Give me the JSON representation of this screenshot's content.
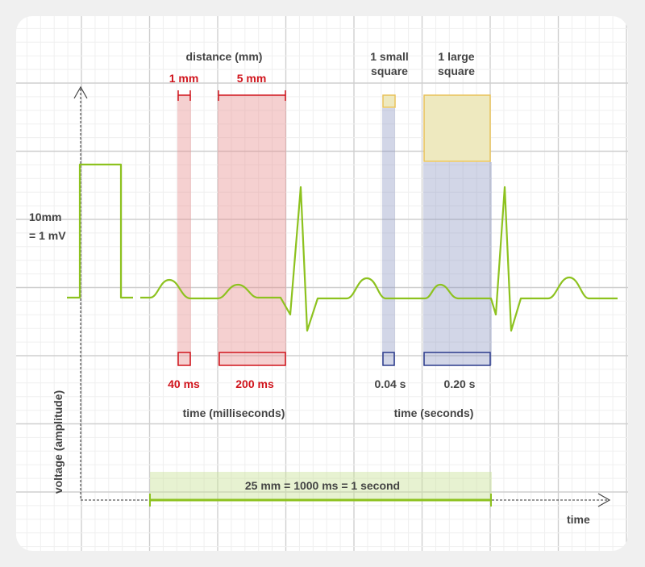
{
  "colors": {
    "trace": "#8dc21f",
    "red": "#d0141c",
    "navy": "#2b3a8c",
    "yellow": "#e8c25a",
    "text": "#444444"
  },
  "labels": {
    "distance": "distance (mm)",
    "one_mm": "1 mm",
    "five_mm": "5 mm",
    "small_square": [
      "1 small",
      "square"
    ],
    "large_square": [
      "1 large",
      "square"
    ],
    "calibration": [
      "10mm",
      "= 1 mV"
    ],
    "ms_40": "40 ms",
    "ms_200": "200 ms",
    "s_004": "0.04 s",
    "s_020": "0.20 s",
    "time_ms": "time (milliseconds)",
    "time_s": "time (seconds)",
    "voltage": "voltage (amplitude)",
    "scale": "25 mm = 1000 ms = 1 second",
    "time": "time"
  }
}
